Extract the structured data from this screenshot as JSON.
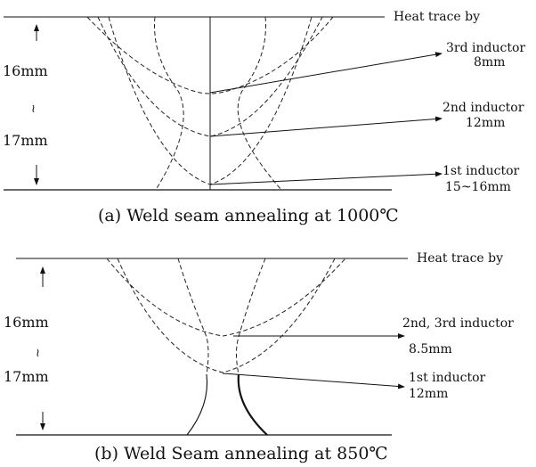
{
  "panel_a": {
    "heat_trace_label": "Heat trace by",
    "depth_top": "16mm",
    "depth_mid": "≀",
    "depth_bottom": "17mm",
    "inductor_3": {
      "name": "3rd inductor",
      "width": "8mm"
    },
    "inductor_2": {
      "name": "2nd inductor",
      "width": "12mm"
    },
    "inductor_1": {
      "name": "1st inductor",
      "width": "15~16mm"
    },
    "caption": "(a) Weld seam annealing at 1000℃"
  },
  "panel_b": {
    "heat_trace_label": "Heat trace by",
    "depth_top": "16mm",
    "depth_mid": "≀",
    "depth_bottom": "17mm",
    "inductor_23": {
      "name": "2nd, 3rd inductor",
      "width": "8.5mm"
    },
    "inductor_1": {
      "name": "1st inductor",
      "width": "12mm"
    },
    "caption": "(b) Weld Seam annealing at 850℃"
  }
}
